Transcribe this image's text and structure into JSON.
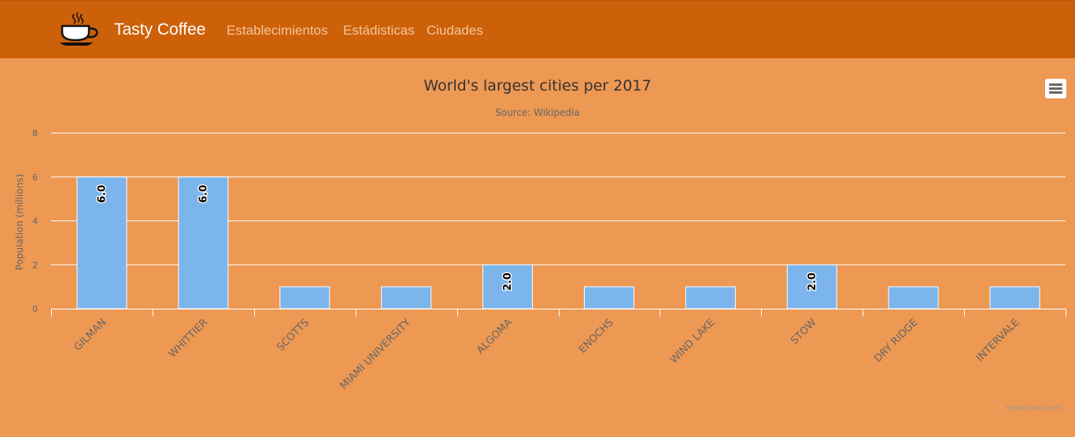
{
  "navbar": {
    "brand": "Tasty Coffee",
    "brand_icon": "coffee-cup-icon",
    "links": [
      "Establecimientos",
      "Estádisticas",
      "Ciudades"
    ]
  },
  "menu": {
    "icon": "hamburger-menu-icon"
  },
  "credit": "Highcharts.com",
  "colors": {
    "navbar": "#cd6109",
    "background": "#ed9853",
    "bar": "#7cb5ec",
    "nav_link": "#f6c49a"
  },
  "chart_data": {
    "type": "bar",
    "title": "World's largest cities per 2017",
    "subtitle": "Source: Wikipedia",
    "ylabel": "Population (millions)",
    "xlabel": "",
    "categories": [
      "GILMAN",
      "WHITTIER",
      "SCOTTS",
      "MIAMI UNIVERSITY",
      "ALGOMA",
      "ENOCHS",
      "WIND LAKE",
      "STOW",
      "DRY RIDGE",
      "INTERVALE"
    ],
    "values": [
      6,
      6,
      1,
      1,
      2,
      1,
      1,
      2,
      1,
      1
    ],
    "data_labels": [
      "6.0",
      "6.0",
      "",
      "",
      "2.0",
      "",
      "",
      "2.0",
      "",
      ""
    ],
    "ylim": [
      0,
      8
    ],
    "yticks": [
      0,
      2,
      4,
      6,
      8
    ],
    "grid": true,
    "legend": false
  }
}
